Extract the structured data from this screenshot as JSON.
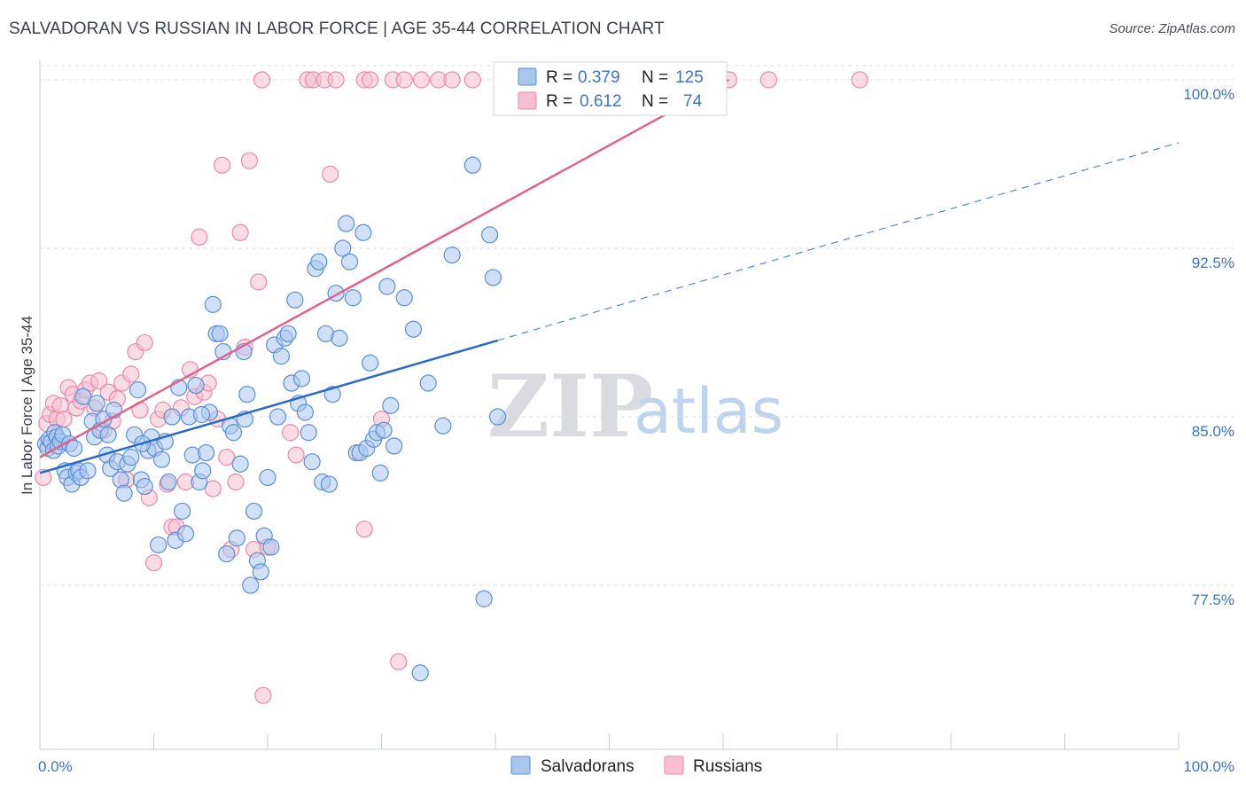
{
  "title": "SALVADORAN VS RUSSIAN IN LABOR FORCE | AGE 35-44 CORRELATION CHART",
  "source": "Source: ZipAtlas.com",
  "watermark": {
    "zip": "ZIP",
    "atlas": "atlas"
  },
  "colors": {
    "blue_fill": "#a9c6ee",
    "blue_stroke": "#5b8fd6",
    "blue_line": "#2a6acb",
    "pink_fill": "#f7bfd0",
    "pink_stroke": "#e88aa8",
    "pink_line": "#e0628d",
    "grid": "#d9dce2",
    "tick_label": "#3c73c8"
  },
  "legend": {
    "rows": [
      {
        "r_label": "R =",
        "r_value": "0.379",
        "n_label": "N =",
        "n_value": "125",
        "series": "Salvadorans"
      },
      {
        "r_label": "R =",
        "r_value": "0.612",
        "n_label": "N =",
        "n_value": "74",
        "series": "Russians"
      }
    ]
  },
  "bottom_legend": [
    "Salvadorans",
    "Russians"
  ],
  "chart_data": {
    "type": "scatter",
    "title": "SALVADORAN VS RUSSIAN IN LABOR FORCE | AGE 35-44 CORRELATION CHART",
    "xlabel": "",
    "ylabel": "In Labor Force | Age 35-44",
    "xlim": [
      0,
      100
    ],
    "ylim": [
      70.2,
      101.5
    ],
    "x_tick_labels": [
      "0.0%",
      "100.0%"
    ],
    "y_ticks": [
      77.5,
      85.0,
      92.5,
      100.0
    ],
    "y_tick_labels": [
      "77.5%",
      "85.0%",
      "92.5%",
      "100.0%"
    ],
    "grid": true,
    "series": [
      {
        "name": "Salvadorans",
        "r": 0.379,
        "n": 125,
        "trend": {
          "x": [
            0,
            40.2
          ],
          "y": [
            82.5,
            88.4
          ]
        },
        "trend_extension": {
          "x": [
            40.2,
            100
          ],
          "y": [
            88.4,
            97.2
          ]
        },
        "points": [
          [
            0.5,
            83.8
          ],
          [
            0.7,
            83.6
          ],
          [
            0.8,
            84.0
          ],
          [
            1.0,
            83.9
          ],
          [
            1.2,
            83.5
          ],
          [
            1.3,
            84.3
          ],
          [
            1.5,
            84.1
          ],
          [
            1.6,
            83.7
          ],
          [
            1.8,
            83.9
          ],
          [
            2.0,
            84.2
          ],
          [
            2.2,
            82.6
          ],
          [
            2.4,
            82.3
          ],
          [
            2.6,
            83.8
          ],
          [
            2.8,
            82.0
          ],
          [
            3.2,
            82.5
          ],
          [
            3.4,
            82.6
          ],
          [
            3.6,
            82.3
          ],
          [
            3.8,
            85.9
          ],
          [
            4.2,
            82.6
          ],
          [
            4.6,
            84.8
          ],
          [
            4.8,
            84.1
          ],
          [
            5.0,
            85.6
          ],
          [
            5.3,
            84.4
          ],
          [
            5.6,
            84.9
          ],
          [
            5.9,
            83.3
          ],
          [
            6.2,
            82.7
          ],
          [
            6.5,
            85.3
          ],
          [
            6.8,
            83.0
          ],
          [
            7.1,
            82.2
          ],
          [
            7.4,
            81.6
          ],
          [
            7.7,
            82.9
          ],
          [
            8.0,
            83.2
          ],
          [
            8.3,
            84.2
          ],
          [
            8.6,
            86.2
          ],
          [
            8.9,
            82.2
          ],
          [
            9.2,
            81.9
          ],
          [
            9.5,
            83.5
          ],
          [
            9.8,
            84.1
          ],
          [
            10.1,
            83.6
          ],
          [
            10.4,
            79.3
          ],
          [
            10.7,
            83.1
          ],
          [
            11.0,
            83.9
          ],
          [
            11.3,
            82.1
          ],
          [
            11.6,
            85.0
          ],
          [
            11.9,
            79.5
          ],
          [
            12.2,
            86.3
          ],
          [
            12.5,
            80.8
          ],
          [
            12.8,
            79.8
          ],
          [
            13.1,
            85.0
          ],
          [
            13.4,
            83.3
          ],
          [
            13.7,
            86.4
          ],
          [
            14.0,
            82.1
          ],
          [
            14.3,
            82.6
          ],
          [
            14.6,
            83.4
          ],
          [
            14.9,
            85.2
          ],
          [
            15.2,
            90.0
          ],
          [
            15.5,
            88.7
          ],
          [
            15.8,
            88.7
          ],
          [
            16.1,
            87.9
          ],
          [
            16.4,
            78.9
          ],
          [
            16.7,
            84.6
          ],
          [
            17.0,
            84.3
          ],
          [
            17.3,
            79.6
          ],
          [
            17.6,
            82.9
          ],
          [
            17.9,
            87.9
          ],
          [
            18.2,
            86.0
          ],
          [
            18.5,
            77.5
          ],
          [
            18.8,
            80.8
          ],
          [
            19.1,
            78.6
          ],
          [
            19.4,
            78.1
          ],
          [
            19.7,
            79.7
          ],
          [
            20.0,
            82.3
          ],
          [
            20.3,
            79.2
          ],
          [
            20.6,
            88.2
          ],
          [
            20.9,
            85.0
          ],
          [
            21.2,
            87.7
          ],
          [
            21.5,
            88.5
          ],
          [
            21.8,
            88.7
          ],
          [
            22.1,
            86.5
          ],
          [
            22.4,
            90.2
          ],
          [
            22.7,
            85.6
          ],
          [
            23.0,
            86.7
          ],
          [
            23.3,
            85.2
          ],
          [
            23.6,
            84.3
          ],
          [
            23.9,
            83.0
          ],
          [
            24.2,
            91.6
          ],
          [
            24.5,
            91.9
          ],
          [
            24.8,
            82.1
          ],
          [
            25.1,
            88.7
          ],
          [
            25.4,
            82.0
          ],
          [
            25.7,
            86.0
          ],
          [
            26.0,
            90.5
          ],
          [
            26.3,
            88.5
          ],
          [
            26.6,
            92.5
          ],
          [
            26.9,
            93.6
          ],
          [
            27.2,
            91.9
          ],
          [
            27.5,
            90.3
          ],
          [
            27.8,
            83.4
          ],
          [
            28.1,
            83.4
          ],
          [
            28.4,
            93.2
          ],
          [
            28.7,
            83.6
          ],
          [
            29.0,
            87.4
          ],
          [
            29.3,
            84.0
          ],
          [
            29.6,
            84.3
          ],
          [
            29.9,
            82.5
          ],
          [
            30.2,
            84.4
          ],
          [
            30.5,
            90.8
          ],
          [
            30.8,
            85.5
          ],
          [
            31.1,
            83.7
          ],
          [
            32.0,
            90.3
          ],
          [
            32.8,
            88.9
          ],
          [
            33.4,
            73.6
          ],
          [
            34.1,
            86.5
          ],
          [
            35.4,
            84.6
          ],
          [
            36.2,
            92.2
          ],
          [
            38.0,
            96.2
          ],
          [
            39.0,
            76.9
          ],
          [
            39.5,
            93.1
          ],
          [
            39.8,
            91.2
          ],
          [
            40.2,
            85.0
          ],
          [
            3.0,
            83.6
          ],
          [
            6.0,
            84.2
          ],
          [
            9.0,
            83.8
          ],
          [
            14.2,
            85.1
          ],
          [
            18.0,
            84.9
          ]
        ]
      },
      {
        "name": "Russians",
        "r": 0.612,
        "n": 74,
        "trend": {
          "x": [
            0,
            60.5
          ],
          "y": [
            83.2,
            100.0
          ]
        },
        "points": [
          [
            0.3,
            82.3
          ],
          [
            0.6,
            84.7
          ],
          [
            0.9,
            85.1
          ],
          [
            1.2,
            85.6
          ],
          [
            1.5,
            84.9
          ],
          [
            1.8,
            85.5
          ],
          [
            2.1,
            84.9
          ],
          [
            2.5,
            86.3
          ],
          [
            2.9,
            86.0
          ],
          [
            3.2,
            85.4
          ],
          [
            3.6,
            85.7
          ],
          [
            4.0,
            86.2
          ],
          [
            4.4,
            86.5
          ],
          [
            4.8,
            85.4
          ],
          [
            5.2,
            86.6
          ],
          [
            5.6,
            84.4
          ],
          [
            6.0,
            86.1
          ],
          [
            6.4,
            84.8
          ],
          [
            6.8,
            85.8
          ],
          [
            7.2,
            86.5
          ],
          [
            7.6,
            82.2
          ],
          [
            8.0,
            86.9
          ],
          [
            8.4,
            87.9
          ],
          [
            8.8,
            85.3
          ],
          [
            9.2,
            88.3
          ],
          [
            9.6,
            81.4
          ],
          [
            10.0,
            78.5
          ],
          [
            10.4,
            84.9
          ],
          [
            10.8,
            85.3
          ],
          [
            11.2,
            82.0
          ],
          [
            11.6,
            80.1
          ],
          [
            12.0,
            80.1
          ],
          [
            12.4,
            85.4
          ],
          [
            12.8,
            82.1
          ],
          [
            13.2,
            87.1
          ],
          [
            13.6,
            85.9
          ],
          [
            14.0,
            93.0
          ],
          [
            14.4,
            86.1
          ],
          [
            14.8,
            86.5
          ],
          [
            15.2,
            81.8
          ],
          [
            15.6,
            84.9
          ],
          [
            16.0,
            96.2
          ],
          [
            16.4,
            83.2
          ],
          [
            16.8,
            79.1
          ],
          [
            17.2,
            82.1
          ],
          [
            17.6,
            93.2
          ],
          [
            18.0,
            88.1
          ],
          [
            18.4,
            96.4
          ],
          [
            18.8,
            79.1
          ],
          [
            19.2,
            91.0
          ],
          [
            19.6,
            72.6
          ],
          [
            20.0,
            79.2
          ],
          [
            22.0,
            84.3
          ],
          [
            22.5,
            83.3
          ],
          [
            25.5,
            95.8
          ],
          [
            28.5,
            80.0
          ],
          [
            30.0,
            84.9
          ],
          [
            31.5,
            74.1
          ],
          [
            19.5,
            100.0
          ],
          [
            23.5,
            100.0
          ],
          [
            24.0,
            100.0
          ],
          [
            25.0,
            100.0
          ],
          [
            26.0,
            100.0
          ],
          [
            28.5,
            100.0
          ],
          [
            29.0,
            100.0
          ],
          [
            31.0,
            100.0
          ],
          [
            32.0,
            100.0
          ],
          [
            33.5,
            100.0
          ],
          [
            35.0,
            100.0
          ],
          [
            36.2,
            100.0
          ],
          [
            38.0,
            100.0
          ],
          [
            60.5,
            100.0
          ],
          [
            64.0,
            100.0
          ],
          [
            72.0,
            100.0
          ]
        ]
      }
    ]
  }
}
